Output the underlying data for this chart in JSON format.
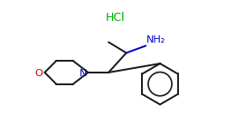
{
  "background_color": "#ffffff",
  "bond_color": "#1a1a1a",
  "nitrogen_color": "#0000cc",
  "oxygen_color": "#cc0000",
  "hcl_color": "#00aa00",
  "nh2_color": "#0000cc",
  "hcl_text": "HCl",
  "nh2_text": "NH₂",
  "o_text": "O",
  "n_text": "N",
  "figsize": [
    2.5,
    1.5
  ],
  "dpi": 100,
  "lw": 1.4
}
